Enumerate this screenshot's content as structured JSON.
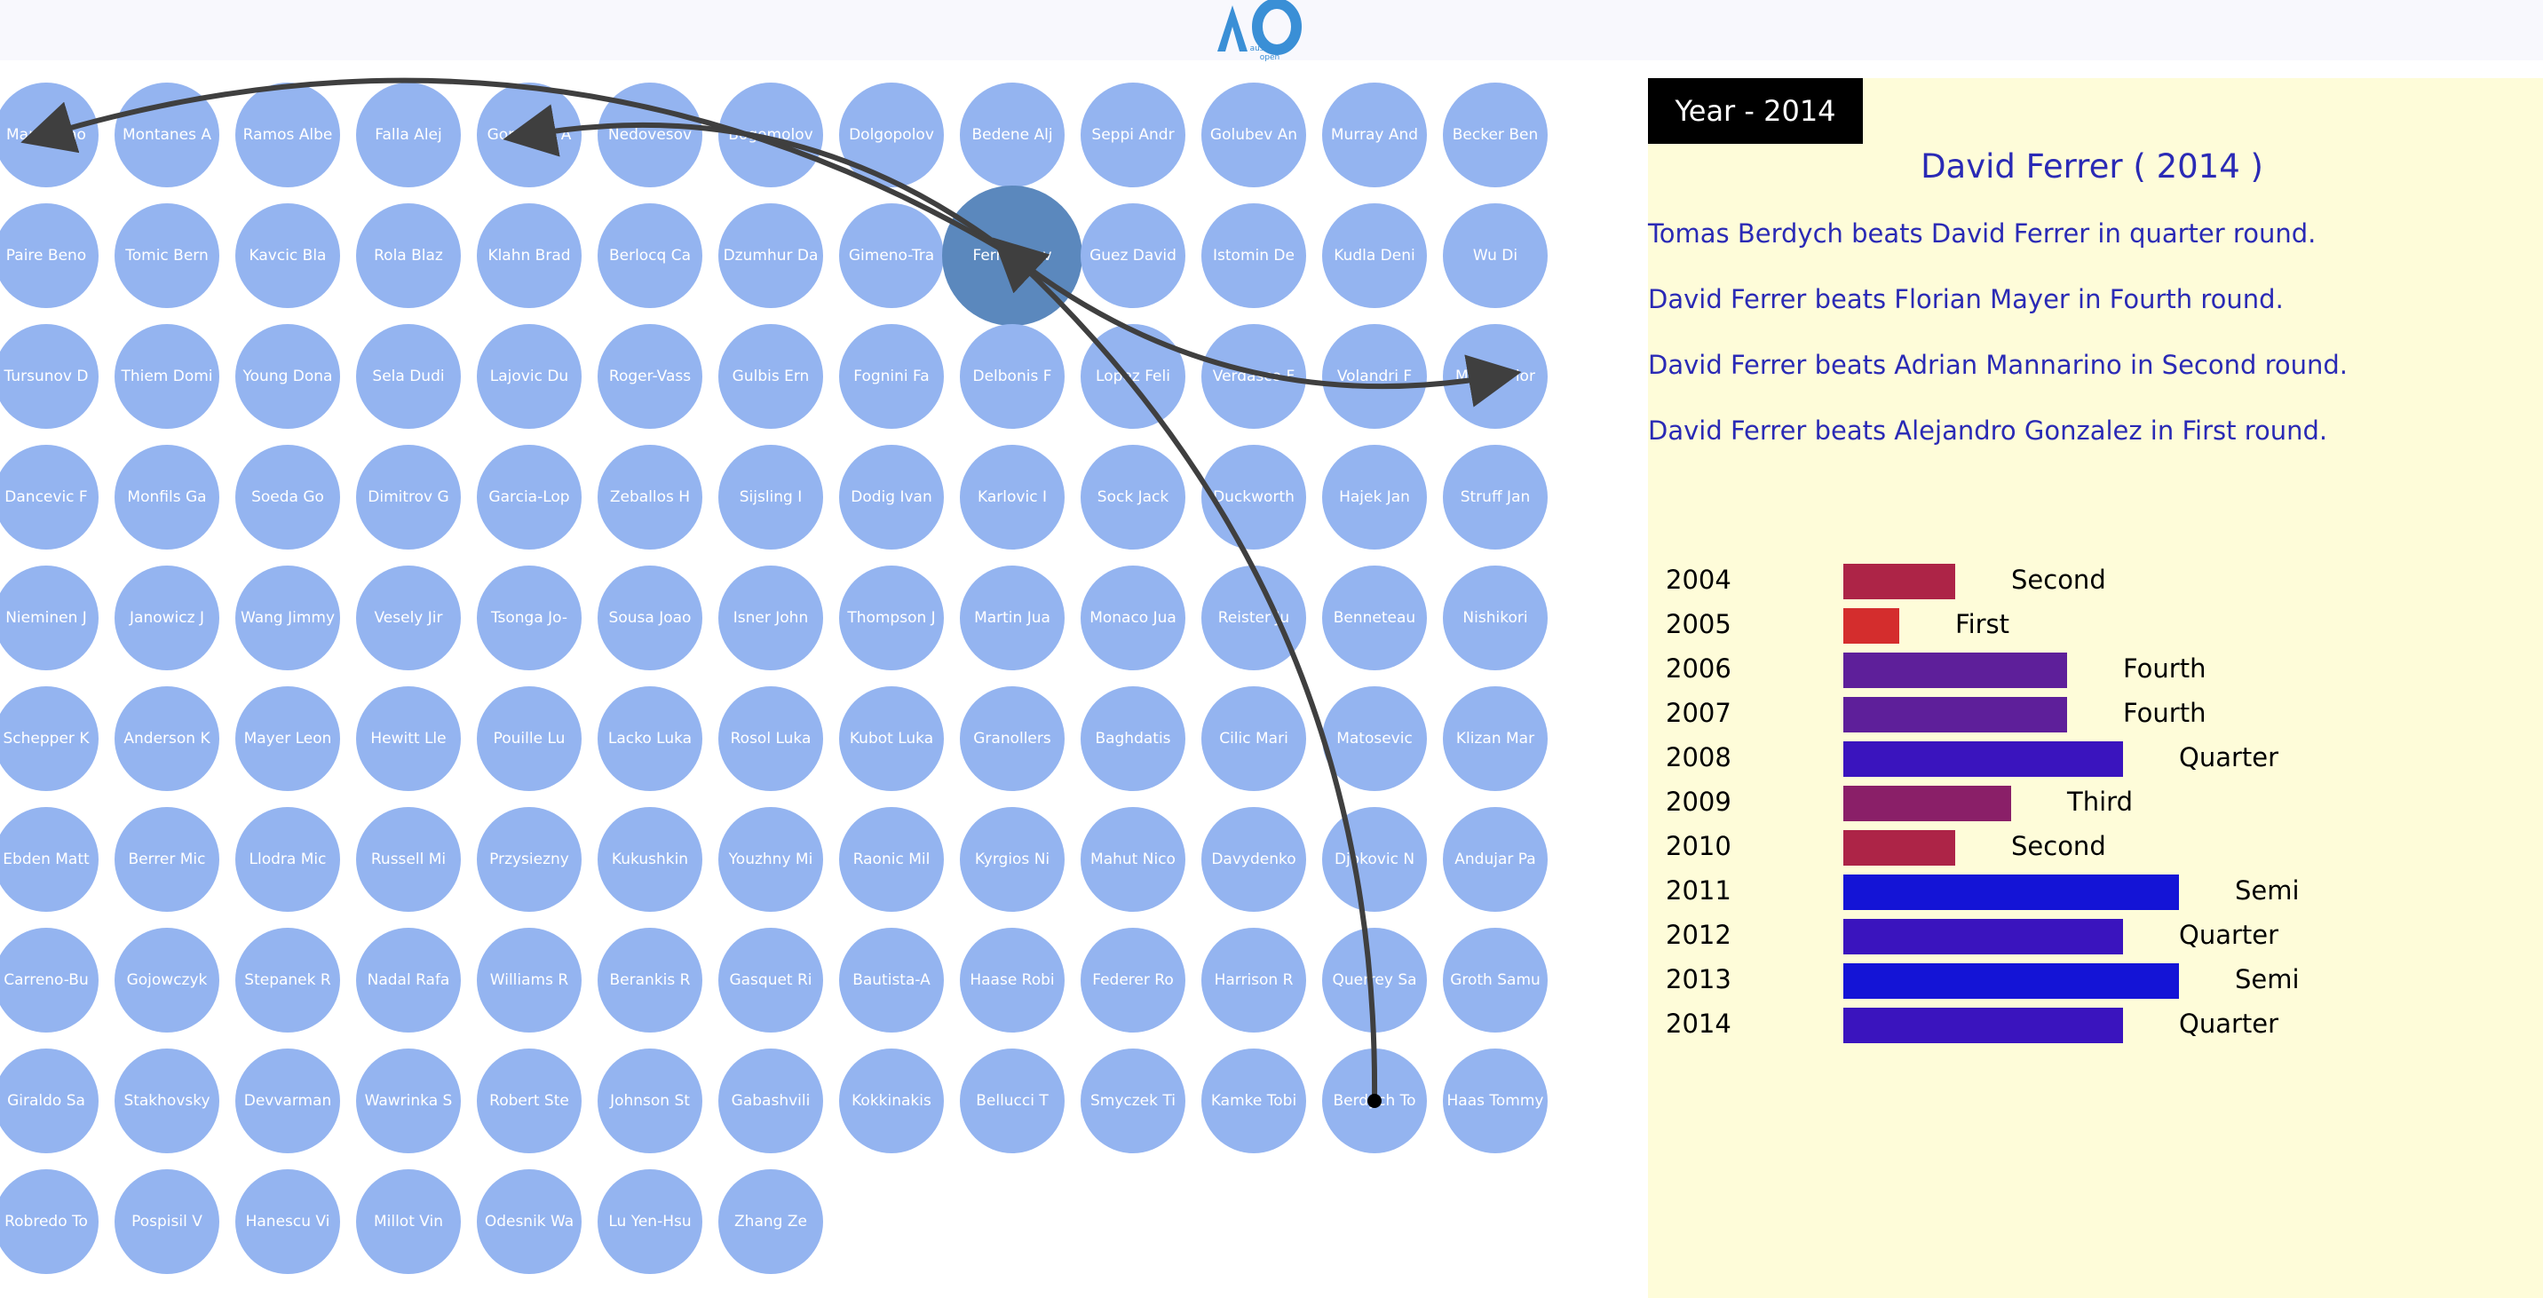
{
  "logo": {
    "subtitle": "australian open",
    "color": "#3a8fd6"
  },
  "players": [
    "Mannarino",
    "Montanes A",
    "Ramos Albe",
    "Falla Alej",
    "Gonzalez A",
    "Nedovesov",
    "Bogomolov",
    "Dolgopolov",
    "Bedene Alj",
    "Seppi Andr",
    "Golubev An",
    "Murray And",
    "Becker Ben",
    "Paire Beno",
    "Tomic Bern",
    "Kavcic Bla",
    "Rola Blaz",
    "Klahn Brad",
    "Berlocq Ca",
    "Dzumhur Da",
    "Gimeno-Tra",
    "Ferrer Dav",
    "Guez David",
    "Istomin De",
    "Kudla Deni",
    "Wu Di",
    "Tursunov D",
    "Thiem Domi",
    "Young Dona",
    "Sela Dudi",
    "Lajovic Du",
    "Roger-Vass",
    "Gulbis Ern",
    "Fognini Fa",
    "Delbonis F",
    "Lopez Feli",
    "Verdasco F",
    "Volandri F",
    "Mayer Flor",
    "Dancevic F",
    "Monfils Ga",
    "Soeda Go",
    "Dimitrov G",
    "Garcia-Lop",
    "Zeballos H",
    "Sijsling I",
    "Dodig Ivan",
    "Karlovic I",
    "Sock Jack",
    "Duckworth",
    "Hajek Jan",
    "Struff Jan",
    "Nieminen J",
    "Janowicz J",
    "Wang Jimmy",
    "Vesely Jir",
    "Tsonga Jo-",
    "Sousa Joao",
    "Isner John",
    "Thompson J",
    "Martin Jua",
    "Monaco Jua",
    "Reister Ju",
    "Benneteau",
    "Nishikori",
    "Schepper K",
    "Anderson K",
    "Mayer Leon",
    "Hewitt Lle",
    "Pouille Lu",
    "Lacko Luka",
    "Rosol Luka",
    "Kubot Luka",
    "Granollers",
    "Baghdatis",
    "Cilic Mari",
    "Matosevic",
    "Klizan Mar",
    "Ebden Matt",
    "Berrer Mic",
    "Llodra Mic",
    "Russell Mi",
    "Przysiezny",
    "Kukushkin",
    "Youzhny Mi",
    "Raonic Mil",
    "Kyrgios Ni",
    "Mahut Nico",
    "Davydenko",
    "Djokovic N",
    "Andujar Pa",
    "Carreno-Bu",
    "Gojowczyk",
    "Stepanek R",
    "Nadal Rafa",
    "Williams R",
    "Berankis R",
    "Gasquet Ri",
    "Bautista-A",
    "Haase Robi",
    "Federer Ro",
    "Harrison R",
    "Querrey Sa",
    "Groth Samu",
    "Giraldo Sa",
    "Stakhovsky",
    "Devvarman",
    "Wawrinka S",
    "Robert Ste",
    "Johnson St",
    "Gabashvili",
    "Kokkinakis",
    "Bellucci T",
    "Smyczek Ti",
    "Kamke Tobi",
    "Berdych To",
    "Haas Tommy",
    "Robredo To",
    "Pospisil V",
    "Hanescu Vi",
    "Millot Vin",
    "Odesnik Wa",
    "Lu Yen-Hsu",
    "Zhang Ze"
  ],
  "selected_player_index": 21,
  "edges": [
    {
      "from": 21,
      "to": 0
    },
    {
      "from": 21,
      "to": 4
    },
    {
      "from": 21,
      "to": 38
    },
    {
      "from": 115,
      "to": 21
    }
  ],
  "colors": {
    "node": "#94b4f0",
    "node_selected": "#5b88bd",
    "edge": "#3f3f3f",
    "panel_bg": "#fefcd9",
    "text_blue": "#2a2ab5"
  },
  "panel": {
    "year_badge": "Year - 2014",
    "player_title": "David Ferrer ( 2014 )",
    "matches": [
      "Tomas Berdych beats David Ferrer in quarter round.",
      "David Ferrer beats Florian Mayer in Fourth round.",
      "David Ferrer beats Adrian Mannarino in Second round.",
      "David Ferrer beats Alejandro Gonzalez in First round."
    ]
  },
  "chart_data": {
    "type": "bar",
    "orientation": "horizontal",
    "categories": [
      "2004",
      "2005",
      "2006",
      "2007",
      "2008",
      "2009",
      "2010",
      "2011",
      "2012",
      "2013",
      "2014"
    ],
    "values": [
      2,
      1,
      4,
      4,
      5,
      3,
      2,
      6,
      5,
      6,
      5
    ],
    "labels": [
      "Second",
      "First",
      "Fourth",
      "Fourth",
      "Quarter",
      "Third",
      "Second",
      "Semi",
      "Quarter",
      "Semi",
      "Quarter"
    ],
    "colors": [
      "#ad2447",
      "#d42d2d",
      "#5e1f9a",
      "#5e1f9a",
      "#3a14be",
      "#8a1f68",
      "#ad2447",
      "#1414d6",
      "#3a14be",
      "#1414d6",
      "#3a14be"
    ],
    "xlim": [
      0,
      6
    ]
  }
}
